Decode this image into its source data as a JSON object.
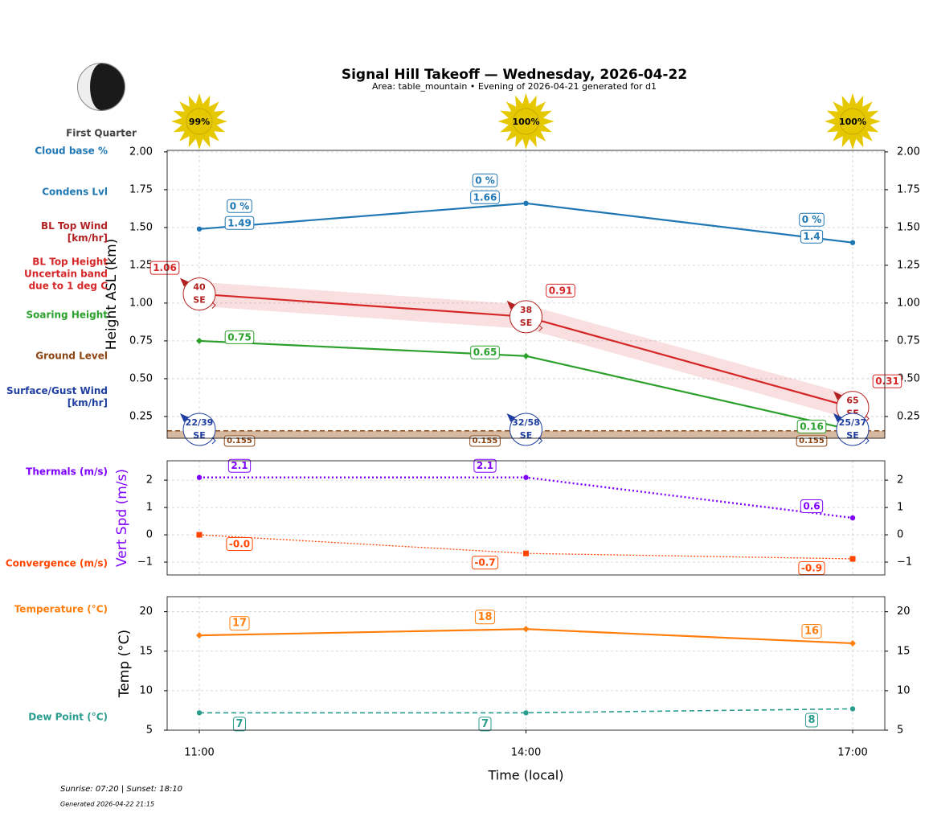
{
  "chart_data": [
    {
      "type": "line",
      "title": "Signal Hill Takeoff — Wednesday, 2026-04-22",
      "subtitle": "Area: table_mountain • Evening of 2026-04-21 generated for d1",
      "moon_phase": "First Quarter",
      "sunshine": {
        "values": [
          99,
          100,
          100
        ],
        "value_labels": [
          "99%",
          "100%",
          "100%"
        ],
        "color": "#e6c800"
      },
      "y_label": "Height ASL (km)",
      "ylim": [
        0.106,
        2.01
      ],
      "yticks": [
        0.25,
        {
          "value": 0.5,
          "label": "0.50"
        },
        0.75,
        {
          "value": 1,
          "label": "1.00"
        },
        1.25,
        {
          "value": 1.5,
          "label": "1.50"
        },
        1.75,
        {
          "value": 2,
          "label": "2.00"
        }
      ],
      "grid": true,
      "series": [
        {
          "name": "Cloud base %",
          "kind": "tag",
          "color": "#1f77b4",
          "values": [
            0,
            0,
            0
          ],
          "value_labels": [
            "0 %",
            "0 %",
            "0 %"
          ]
        },
        {
          "name": "Condens Lvl",
          "kind": "line",
          "color": "#1f77b4",
          "line_style": "solid",
          "marker": "o",
          "values": [
            1.49,
            1.66,
            1.4
          ]
        },
        {
          "name": "BL Top Wind\n[km/hr]",
          "kind": "wind-aloft",
          "color": "#b22222",
          "values": [
            40,
            38,
            65
          ],
          "directions": [
            "SE",
            "SE",
            "SE"
          ]
        },
        {
          "name": "BL Top Height\nUncertain band\ndue to 1 deg C",
          "kind": "line",
          "color": "#d62728",
          "line_style": "solid",
          "values": [
            1.06,
            0.91,
            0.31
          ],
          "band_lower": [
            0.98,
            0.83,
            0.23
          ],
          "band_upper": [
            1.14,
            0.99,
            0.39
          ]
        },
        {
          "name": "Soaring Height",
          "kind": "line",
          "color": "#2ca02c",
          "line_style": "solid",
          "marker": "D",
          "values": [
            0.75,
            0.65,
            0.16
          ]
        },
        {
          "name": "Ground Level",
          "kind": "ground",
          "color": "#8b4513",
          "line_style": "dashed",
          "values": [
            0.155,
            0.155,
            0.155
          ]
        },
        {
          "name": "Surface/Gust Wind\n[km/hr]",
          "kind": "wind-surface",
          "color": "#1f3fa0",
          "values": [
            22,
            32,
            25
          ],
          "gust": [
            39,
            58,
            37
          ],
          "value_labels": [
            "22/39",
            "32/58",
            "25/37"
          ],
          "directions": [
            "SE",
            "SE",
            "SE"
          ]
        }
      ]
    },
    {
      "type": "line",
      "y_label": "Vert Spd (m/s)",
      "y_label_color": "#7f00ff",
      "ylim": [
        -1.47,
        2.71
      ],
      "yticks": [
        {
          "value": -1,
          "label": "−1"
        },
        0,
        1,
        2
      ],
      "grid": true,
      "series": [
        {
          "name": "Thermals (m/s)",
          "kind": "line",
          "color": "#7f00ff",
          "line_style": "dotted",
          "marker": "o",
          "values": [
            2.1,
            2.1,
            0.62
          ],
          "value_labels": [
            "2.1",
            "2.1",
            "0.6"
          ]
        },
        {
          "name": "Convergence (m/s)",
          "kind": "line",
          "color": "#ff4500",
          "line_style": "fine-dotted",
          "marker": "s",
          "values": [
            0,
            -0.68,
            -0.88
          ],
          "value_labels": [
            "-0.0",
            "-0.7",
            "-0.9"
          ]
        }
      ]
    },
    {
      "type": "line",
      "y_label": "Temp (°C)",
      "ylim": [
        5,
        21.9
      ],
      "yticks": [
        5,
        10,
        15,
        20
      ],
      "grid": true,
      "categories": [
        "11:00",
        "14:00",
        "17:00"
      ],
      "x_label": "Time (local)",
      "series": [
        {
          "name": "Temperature (°C)",
          "kind": "line",
          "color": "#ff7f0e",
          "line_style": "solid",
          "marker": "D",
          "values": [
            17.0,
            17.8,
            16.0
          ],
          "value_labels": [
            "17",
            "18",
            "16"
          ]
        },
        {
          "name": "Dew Point (°C)",
          "kind": "line",
          "color": "#2a9d8f",
          "line_style": "dashed",
          "marker": "o",
          "values": [
            7.2,
            7.2,
            7.7
          ],
          "value_labels": [
            "7",
            "7",
            "8"
          ]
        }
      ]
    }
  ],
  "footer": {
    "sun_times": "Sunrise: 07:20 | Sunset: 18:10",
    "generated": "Generated 2026-04-22 21:15"
  }
}
